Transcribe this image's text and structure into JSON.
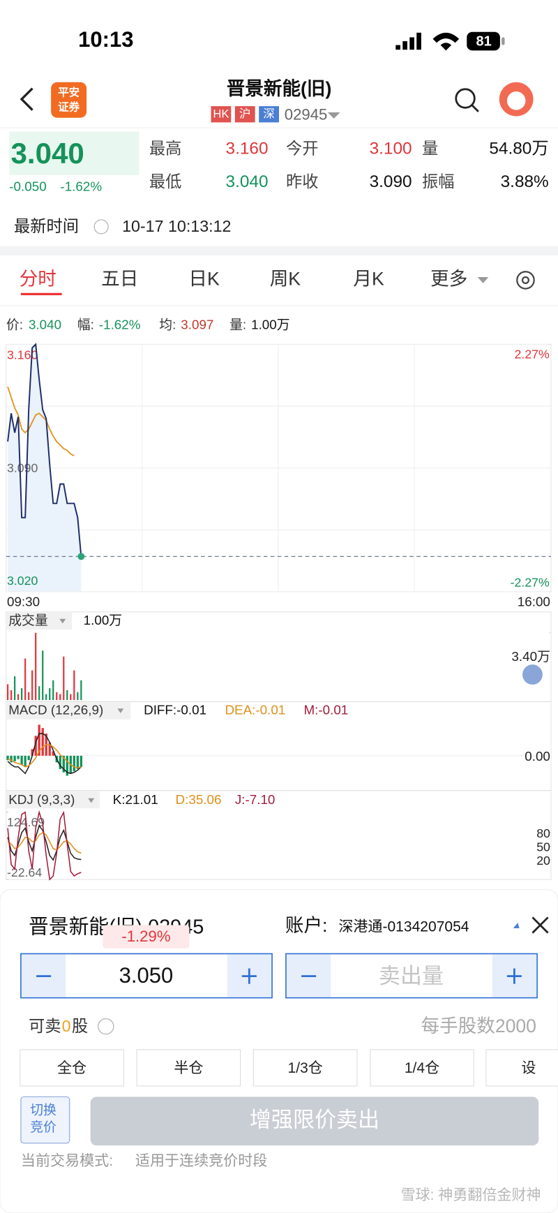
{
  "status_bar": {
    "time": "10:13",
    "battery": "81"
  },
  "header": {
    "logo": [
      "平安",
      "证券"
    ],
    "title": "晋景新能(旧)",
    "badges": [
      "HK",
      "沪",
      "深"
    ],
    "code": "02945"
  },
  "quote": {
    "price": "3.040",
    "change": "-0.050",
    "change_pct": "-1.62%",
    "stats": [
      {
        "label": "最高",
        "value": "3.160"
      },
      {
        "label": "今开",
        "value": "3.100"
      },
      {
        "label": "量",
        "value": "54.80万"
      },
      {
        "label": "最低",
        "value": "3.040"
      },
      {
        "label": "昨收",
        "value": "3.090"
      },
      {
        "label": "振幅",
        "value": "3.88%"
      }
    ],
    "time_label": "最新时间",
    "time": "10-17 10:13:12"
  },
  "tabs": [
    "分时",
    "五日",
    "日K",
    "周K",
    "月K",
    "更多"
  ],
  "info_line": [
    {
      "label": "价:",
      "value": "3.040"
    },
    {
      "label": "幅:",
      "value": "-1.62%"
    },
    {
      "label": "均:",
      "value": "3.097"
    },
    {
      "label": "量:",
      "value": "1.00万"
    }
  ],
  "price_chart": {
    "type": "line",
    "ylim": [
      3.02,
      3.16
    ],
    "yticks": [
      {
        "value": 3.16,
        "label": "3.160"
      },
      {
        "value": 3.09,
        "label": "3.090"
      },
      {
        "value": 3.02,
        "label": "3.020"
      }
    ],
    "y2lim": [
      -2.27,
      2.27
    ],
    "y2ticks": [
      {
        "value": 2.27,
        "label": "2.27%"
      },
      {
        "value": -2.27,
        "label": "-2.27%"
      }
    ],
    "x_labels": [
      "09:30",
      "16:00"
    ],
    "series": [
      {
        "name": "价",
        "color": "#1f2f6b",
        "values": [
          3.105,
          3.121,
          3.11,
          3.119,
          3.062,
          3.062,
          3.123,
          3.158,
          3.16,
          3.14,
          3.123,
          3.118,
          3.092,
          3.07,
          3.07,
          3.081,
          3.081,
          3.07,
          3.07,
          3.07,
          3.062,
          3.04
        ]
      },
      {
        "name": "均",
        "color": "#e0901c",
        "values": [
          3.136,
          3.13,
          3.124,
          3.12,
          3.112,
          3.11,
          3.112,
          3.116,
          3.12,
          3.121,
          3.119,
          3.117,
          3.112,
          3.108,
          3.105,
          3.103,
          3.101,
          3.1,
          3.098,
          3.097,
          null,
          null
        ]
      }
    ]
  },
  "volume_chart": {
    "type": "bar",
    "title": "成交量",
    "current": "1.00万",
    "ylim": [
      0,
      3.4
    ],
    "yticks": [
      {
        "value": 3.4,
        "label": "3.40万"
      }
    ],
    "values": [
      0.8,
      0.5,
      1.2,
      0.3,
      0.6,
      2.1,
      0.4,
      1.5,
      3.4,
      0.7,
      2.5,
      0.3,
      0.6,
      1.0,
      0.4,
      0.3,
      2.2,
      0.5,
      0.3,
      1.5,
      0.4,
      1.0
    ]
  },
  "macd_chart": {
    "type": "macd",
    "title": "MACD (12,26,9)",
    "labels": [
      "DIFF:-0.01",
      "DEA:-0.01",
      "M:-0.01"
    ],
    "ylim": [
      -0.03,
      0.03
    ],
    "yticks": [
      {
        "value": 0,
        "label": "0.00"
      }
    ],
    "hist": [
      -0.004,
      -0.006,
      -0.005,
      -0.003,
      -0.008,
      -0.01,
      -0.004,
      0.006,
      0.018,
      0.028,
      0.025,
      0.02,
      0.012,
      0.004,
      -0.006,
      -0.012,
      -0.015,
      -0.018,
      -0.016,
      -0.014,
      -0.012,
      -0.01
    ],
    "series": [
      {
        "name": "DIFF",
        "color": "#222222",
        "values": [
          -0.005,
          -0.008,
          -0.01,
          -0.01,
          -0.013,
          -0.016,
          -0.01,
          0,
          0.012,
          0.02,
          0.02,
          0.018,
          0.012,
          0.005,
          -0.003,
          -0.009,
          -0.012,
          -0.015,
          -0.016,
          -0.015,
          -0.013,
          -0.01
        ]
      },
      {
        "name": "DEA",
        "color": "#e0901c",
        "values": [
          -0.003,
          -0.004,
          -0.006,
          -0.007,
          -0.008,
          -0.01,
          -0.009,
          -0.006,
          -0.002,
          0.004,
          0.008,
          0.01,
          0.01,
          0.008,
          0.005,
          0.001,
          -0.002,
          -0.005,
          -0.008,
          -0.01,
          -0.011,
          -0.01
        ]
      }
    ]
  },
  "kdj_chart": {
    "type": "line",
    "title": "KDJ (9,3,3)",
    "labels": [
      "K:21.01",
      "D:35.06",
      "J:-7.10"
    ],
    "ylim": [
      -22.64,
      124.69
    ],
    "yticks": [
      124.69,
      -22.64
    ],
    "y2ticks": [
      80,
      50,
      20
    ],
    "series": [
      {
        "name": "K",
        "color": "#222222",
        "values": [
          70,
          40,
          30,
          55,
          80,
          90,
          60,
          40,
          70,
          95,
          85,
          60,
          30,
          20,
          40,
          70,
          85,
          60,
          35,
          25,
          22,
          21.01
        ]
      },
      {
        "name": "D",
        "color": "#e0901c",
        "values": [
          60,
          55,
          45,
          48,
          58,
          70,
          68,
          60,
          62,
          75,
          80,
          75,
          60,
          45,
          42,
          50,
          60,
          62,
          55,
          45,
          38,
          35.06
        ]
      },
      {
        "name": "J",
        "color": "#a31c3c",
        "values": [
          90,
          10,
          0,
          70,
          120,
          124.69,
          40,
          0,
          90,
          124.69,
          100,
          30,
          -22.64,
          -15,
          35,
          110,
          124,
          55,
          -5,
          -15,
          -10,
          -7.1
        ]
      }
    ]
  },
  "order": {
    "stock": "晋景新能(旧) 02945",
    "tooltip": "-1.29%",
    "account_label": "账户:",
    "account": "深港通-0134207054",
    "price": "3.050",
    "qty_placeholder": "卖出量",
    "sellable": [
      "可卖",
      "0",
      "股"
    ],
    "lot": "每手股数2000",
    "buttons": [
      "全仓",
      "半仓",
      "1/3仓",
      "1/4仓",
      "设"
    ],
    "switch": [
      "切换",
      "竞价"
    ],
    "submit": "增强限价卖出",
    "mode_label": "当前交易模式:",
    "mode": "适用于连续竞价时段"
  },
  "watermark": "雪球: 神勇翻倍金财神"
}
